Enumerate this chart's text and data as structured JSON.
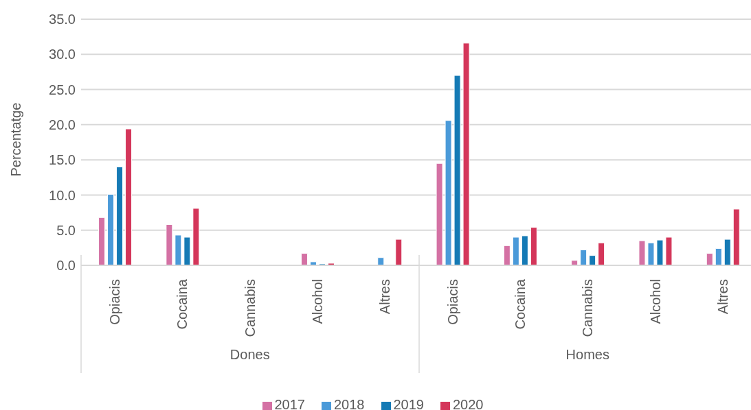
{
  "chart_data": {
    "type": "bar",
    "ylabel": "Percentatge",
    "categories": [
      "Opiacis",
      "Cocaina",
      "Cannabis",
      "Alcohol",
      "Altres",
      "Opiacis",
      "Cocaina",
      "Cannabis",
      "Alcohol",
      "Altres"
    ],
    "annotations": [
      "Dones",
      "Homes"
    ],
    "series": [
      {
        "name": "2017",
        "color": "#d471a4",
        "values": [
          6.8,
          5.8,
          null,
          1.7,
          null,
          14.5,
          2.8,
          0.7,
          3.5,
          1.7
        ]
      },
      {
        "name": "2018",
        "color": "#4a9ad9",
        "values": [
          10.1,
          4.3,
          null,
          0.5,
          1.1,
          20.6,
          4.0,
          2.2,
          3.2,
          2.4
        ]
      },
      {
        "name": "2019",
        "color": "#157ab5",
        "values": [
          14.0,
          4.0,
          null,
          0.2,
          null,
          27.0,
          4.2,
          1.4,
          3.6,
          3.7
        ]
      },
      {
        "name": "2020",
        "color": "#d4365a",
        "values": [
          19.4,
          8.1,
          null,
          0.3,
          3.7,
          31.6,
          5.4,
          3.2,
          4.0,
          8.0
        ]
      }
    ],
    "ylim": [
      0,
      35
    ],
    "yticks": [
      {
        "value": 0,
        "label": "0.0"
      },
      {
        "value": 5,
        "label": "5.0"
      },
      {
        "value": 10,
        "label": "10.0"
      },
      {
        "value": 15,
        "label": "15.0"
      },
      {
        "value": 20,
        "label": "20.0"
      },
      {
        "value": 25,
        "label": "25.0"
      },
      {
        "value": 30,
        "label": "30.0"
      },
      {
        "value": 35,
        "label": "35.0"
      }
    ],
    "grid": "y",
    "legend": "bottom"
  }
}
